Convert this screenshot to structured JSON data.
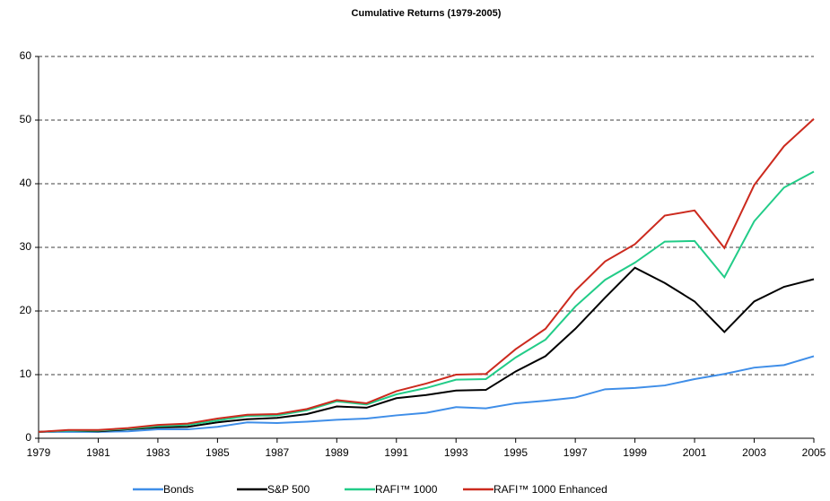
{
  "chart_data": {
    "type": "line",
    "title": "Cumulative Returns (1979-2005)",
    "x": [
      1979,
      1980,
      1981,
      1982,
      1983,
      1984,
      1985,
      1986,
      1987,
      1988,
      1989,
      1990,
      1991,
      1992,
      1993,
      1994,
      1995,
      1996,
      1997,
      1998,
      1999,
      2000,
      2001,
      2002,
      2003,
      2004,
      2005
    ],
    "xlim": [
      1979,
      2005
    ],
    "xticks": [
      1979,
      1981,
      1983,
      1985,
      1987,
      1989,
      1991,
      1993,
      1995,
      1997,
      1999,
      2001,
      2003,
      2005
    ],
    "ylim": [
      0,
      60
    ],
    "yticks": [
      0,
      10,
      20,
      30,
      40,
      50,
      60
    ],
    "grid": true,
    "legend": "bottom",
    "series": [
      {
        "name": "Bonds",
        "color": "#3f8ee8",
        "values": [
          1.0,
          1.0,
          1.0,
          1.1,
          1.4,
          1.4,
          1.8,
          2.5,
          2.4,
          2.6,
          2.9,
          3.1,
          3.6,
          4.0,
          4.9,
          4.7,
          5.5,
          5.9,
          6.4,
          7.7,
          7.9,
          8.3,
          9.3,
          10.1,
          11.1,
          11.5,
          12.9
        ]
      },
      {
        "name": "S&P 500",
        "color": "#000000",
        "values": [
          1.0,
          1.2,
          1.1,
          1.4,
          1.7,
          1.8,
          2.5,
          3.0,
          3.2,
          3.8,
          5.0,
          4.8,
          6.3,
          6.8,
          7.5,
          7.6,
          10.5,
          12.9,
          17.2,
          22.1,
          26.8,
          24.4,
          21.5,
          16.7,
          21.5,
          23.8,
          25.0
        ]
      },
      {
        "name": "RAFI™ 1000",
        "color": "#22cc88",
        "values": [
          1.0,
          1.2,
          1.2,
          1.5,
          1.9,
          2.1,
          2.8,
          3.5,
          3.6,
          4.4,
          5.8,
          5.3,
          6.9,
          7.9,
          9.2,
          9.3,
          12.7,
          15.5,
          20.7,
          24.9,
          27.6,
          30.9,
          31.0,
          25.3,
          34.1,
          39.4,
          41.9
        ]
      },
      {
        "name": "RAFI™ 1000 Enhanced",
        "color": "#cc2a1e",
        "values": [
          1.0,
          1.3,
          1.3,
          1.6,
          2.1,
          2.3,
          3.1,
          3.7,
          3.8,
          4.6,
          6.0,
          5.5,
          7.4,
          8.6,
          10.0,
          10.1,
          14.0,
          17.2,
          23.2,
          27.8,
          30.5,
          35.0,
          35.8,
          29.9,
          39.8,
          45.9,
          50.2
        ]
      }
    ]
  }
}
